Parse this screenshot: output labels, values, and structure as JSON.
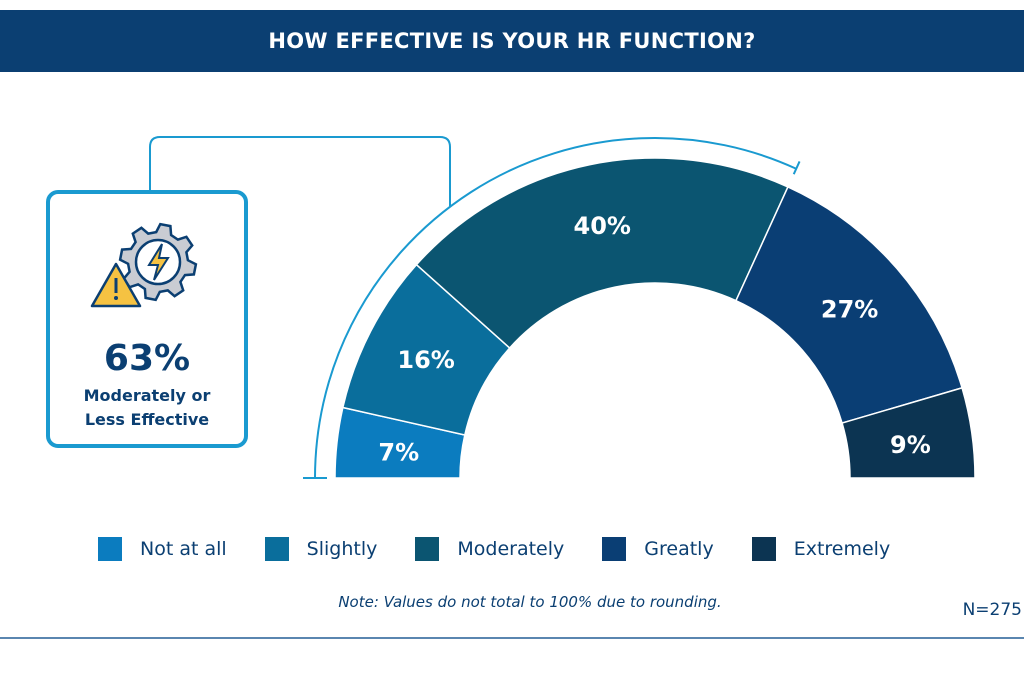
{
  "header": {
    "title": "HOW EFFECTIVE IS YOUR HR FUNCTION?"
  },
  "callout": {
    "value": "63%",
    "line1": "Moderately or",
    "line2": "Less Effective",
    "icon": "gear-lightning-warning-icon"
  },
  "chart_data": {
    "type": "pie",
    "subtype": "semi-donut",
    "title": "HOW EFFECTIVE IS YOUR HR FUNCTION?",
    "categories": [
      "Not at all",
      "Slightly",
      "Moderately",
      "Greatly",
      "Extremely"
    ],
    "values": [
      7,
      16,
      40,
      27,
      9
    ],
    "labels": [
      "7%",
      "16%",
      "40%",
      "27%",
      "9%"
    ],
    "colors": [
      "#0b7cbf",
      "#0a6e9c",
      "#0b5571",
      "#0a3e74",
      "#0c3452"
    ],
    "highlight_bracket_percent": 63,
    "legend_position": "bottom"
  },
  "note": "Note: Values do not total to 100% due to rounding.",
  "sample": "N=275"
}
